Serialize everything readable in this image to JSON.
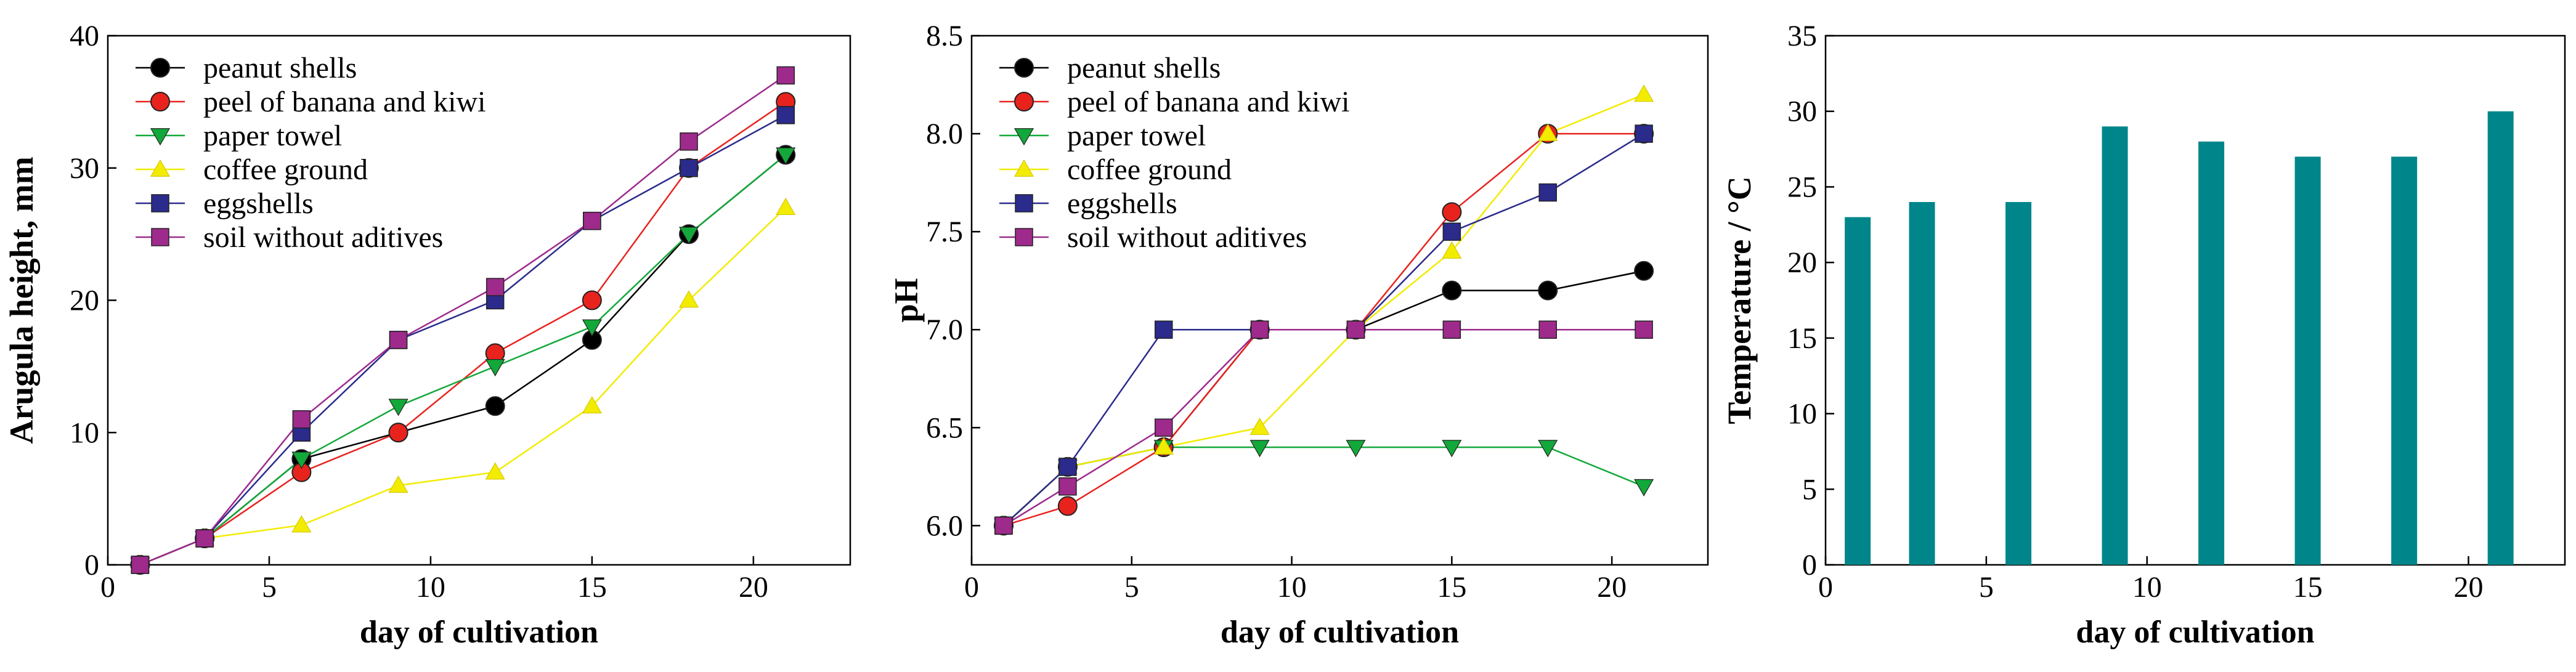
{
  "chart_data": [
    {
      "type": "line",
      "x": [
        1,
        3,
        6,
        9,
        12,
        15,
        18,
        21
      ],
      "xlabel": "day of cultivation",
      "ylabel": "Arugula height, mm",
      "xlim": [
        0,
        23
      ],
      "ylim": [
        0,
        40
      ],
      "xticks": [
        "0",
        "5",
        "10",
        "15",
        "20"
      ],
      "yticks": [
        "0",
        "10",
        "20",
        "30",
        "40"
      ],
      "legend_position": "top-left",
      "series": [
        {
          "name": "peanut shells",
          "color": "#000000",
          "marker": "circle",
          "values": [
            0,
            2,
            8,
            10,
            12,
            17,
            25,
            31
          ]
        },
        {
          "name": "peel of banana and kiwi",
          "color": "#e8231e",
          "marker": "circle",
          "values": [
            0,
            2,
            7,
            10,
            16,
            20,
            30,
            35
          ]
        },
        {
          "name": "paper towel",
          "color": "#13a83a",
          "marker": "triangle-down",
          "values": [
            0,
            2,
            8,
            12,
            15,
            18,
            25,
            31
          ]
        },
        {
          "name": "coffee ground",
          "color": "#f2ec00",
          "marker": "triangle-up",
          "values": [
            0,
            2,
            3,
            6,
            7,
            12,
            20,
            27
          ]
        },
        {
          "name": "eggshells",
          "color": "#2b2b8c",
          "marker": "square",
          "values": [
            0,
            2,
            10,
            17,
            20,
            26,
            30,
            34
          ]
        },
        {
          "name": "soil without aditives",
          "color": "#9e2a8c",
          "marker": "square",
          "values": [
            0,
            2,
            11,
            17,
            21,
            26,
            32,
            37
          ]
        }
      ]
    },
    {
      "type": "line",
      "x": [
        1,
        3,
        6,
        9,
        12,
        15,
        18,
        21
      ],
      "xlabel": "day of cultivation",
      "ylabel": "pH",
      "xlim": [
        0,
        23
      ],
      "ylim": [
        5.8,
        8.5
      ],
      "xticks": [
        "0",
        "5",
        "10",
        "15",
        "20"
      ],
      "yticks": [
        "6.0",
        "6.5",
        "7.0",
        "7.5",
        "8.0",
        "8.5"
      ],
      "legend_position": "top-left",
      "series": [
        {
          "name": "peanut shells",
          "color": "#000000",
          "marker": "circle",
          "values": [
            6.0,
            6.3,
            6.4,
            7.0,
            7.0,
            7.2,
            7.2,
            7.3
          ]
        },
        {
          "name": "peel of banana and kiwi",
          "color": "#e8231e",
          "marker": "circle",
          "values": [
            6.0,
            6.1,
            6.4,
            7.0,
            7.0,
            7.6,
            8.0,
            8.0
          ]
        },
        {
          "name": "paper towel",
          "color": "#13a83a",
          "marker": "triangle-down",
          "values": [
            6.0,
            6.3,
            6.4,
            6.4,
            6.4,
            6.4,
            6.4,
            6.2
          ]
        },
        {
          "name": "coffee ground",
          "color": "#f2ec00",
          "marker": "triangle-up",
          "values": [
            6.0,
            6.3,
            6.4,
            6.5,
            7.0,
            7.4,
            8.0,
            8.2
          ]
        },
        {
          "name": "eggshells",
          "color": "#2b2b8c",
          "marker": "square",
          "values": [
            6.0,
            6.3,
            7.0,
            7.0,
            7.0,
            7.5,
            7.7,
            8.0
          ]
        },
        {
          "name": "soil without aditives",
          "color": "#9e2a8c",
          "marker": "square",
          "values": [
            6.0,
            6.2,
            6.5,
            7.0,
            7.0,
            7.0,
            7.0,
            7.0
          ]
        }
      ]
    },
    {
      "type": "bar",
      "x": [
        1,
        3,
        6,
        9,
        12,
        15,
        18,
        21
      ],
      "values": [
        23,
        24,
        24,
        29,
        28,
        27,
        27,
        30
      ],
      "color": "#00868a",
      "xlabel": "day of cultivation",
      "ylabel": "Temperature / °C",
      "xlim": [
        0,
        23
      ],
      "ylim": [
        0,
        35
      ],
      "xticks": [
        "0",
        "5",
        "10",
        "15",
        "20"
      ],
      "yticks": [
        "0",
        "5",
        "10",
        "15",
        "20",
        "25",
        "30",
        "35"
      ]
    }
  ]
}
